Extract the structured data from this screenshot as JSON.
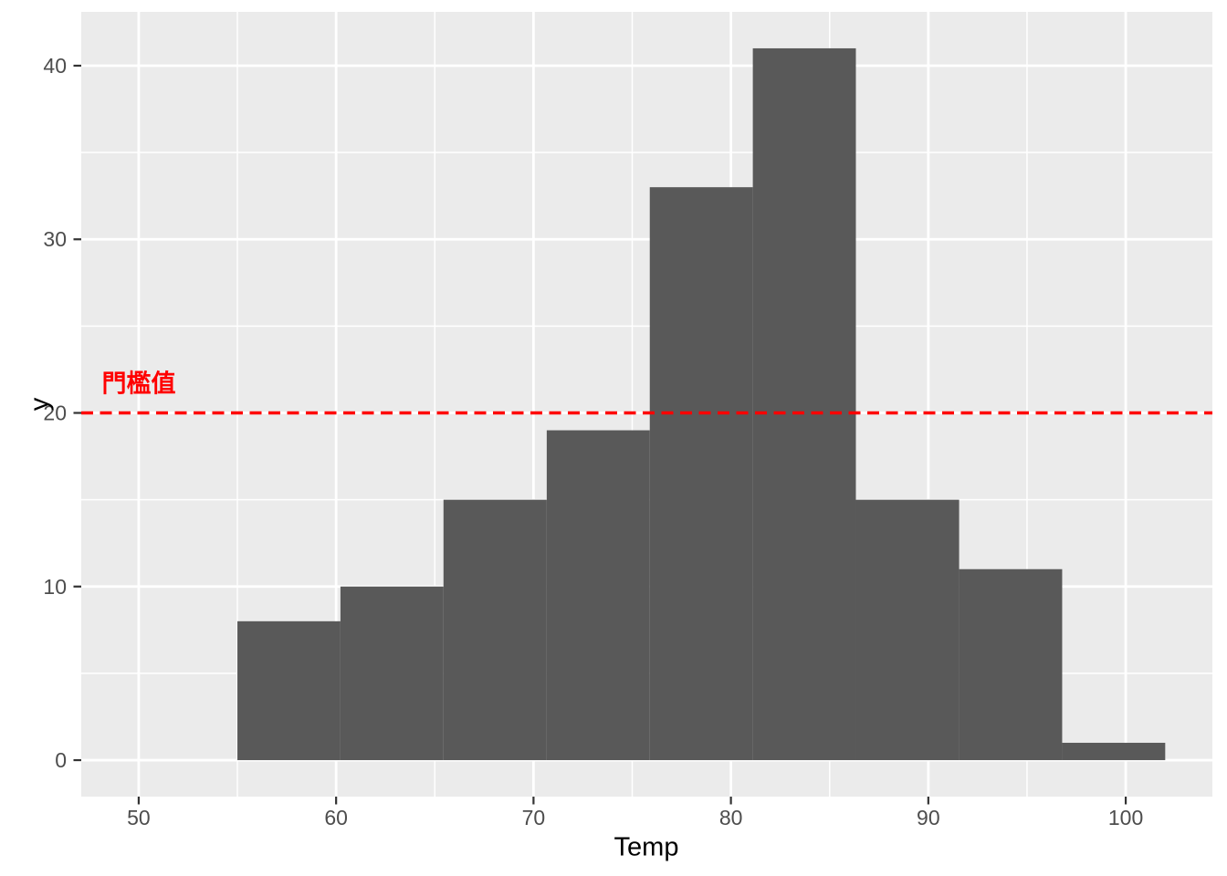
{
  "chart_data": {
    "type": "bar",
    "subtype": "histogram",
    "title": "",
    "xlabel": "Temp",
    "ylabel": "y",
    "bin_edges": [
      55,
      60.22,
      65.44,
      70.67,
      75.89,
      81.11,
      86.33,
      91.56,
      96.78,
      102
    ],
    "counts": [
      8,
      10,
      15,
      19,
      33,
      41,
      15,
      11,
      1
    ],
    "x_ticks": [
      50,
      60,
      70,
      80,
      90,
      100
    ],
    "y_ticks": [
      0,
      10,
      20,
      30,
      40
    ],
    "x_minor_ticks": [
      55,
      65,
      75,
      85,
      95
    ],
    "y_minor_ticks": [
      5,
      15,
      25,
      35
    ],
    "xlim": [
      47.09,
      104.39
    ],
    "ylim": [
      -2.1,
      43.1
    ],
    "grid": true,
    "legend": false,
    "threshold": {
      "value": 20,
      "label": "門檻值",
      "label_x": 50,
      "label_y": 21.8,
      "color": "#ff0000",
      "linestyle": "dashed"
    },
    "colors": {
      "bar_fill": "#595959",
      "panel_bg": "#ebebeb",
      "grid_major": "#ffffff",
      "grid_minor": "#ffffff",
      "tick_mark": "#333333",
      "tick_label": "#4d4d4d",
      "axis_title": "#000000",
      "figure_bg": "#ffffff"
    }
  }
}
